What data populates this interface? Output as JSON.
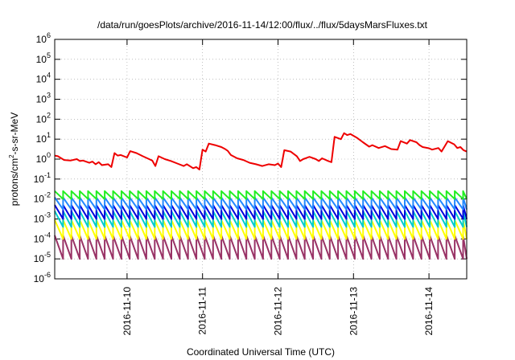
{
  "chart_data": {
    "type": "line",
    "title": "/data/run/goesPlots/archive/2016-11-14/12:00/flux/../flux/5daysMarsFluxes.txt",
    "xlabel": "Coordinated Universal Time (UTC)",
    "ylabel": {
      "before": "protons/cm",
      "sup": "2",
      "after": "-s-sr-MeV"
    },
    "yscale": "log",
    "ylim": [
      1e-06,
      1000000.0
    ],
    "xlim": [
      "2016-11-09T01:00",
      "2016-11-14T12:00"
    ],
    "grid": true,
    "legend": "none",
    "y_ticks": [
      {
        "base": "10",
        "exp": "-6",
        "value": 1e-06
      },
      {
        "base": "10",
        "exp": "-5",
        "value": 1e-05
      },
      {
        "base": "10",
        "exp": "-4",
        "value": 0.0001
      },
      {
        "base": "10",
        "exp": "-3",
        "value": 0.001
      },
      {
        "base": "10",
        "exp": "-2",
        "value": 0.01
      },
      {
        "base": "10",
        "exp": "-1",
        "value": 0.1
      },
      {
        "base": "10",
        "exp": "0",
        "value": 1
      },
      {
        "base": "10",
        "exp": "1",
        "value": 10
      },
      {
        "base": "10",
        "exp": "2",
        "value": 100
      },
      {
        "base": "10",
        "exp": "3",
        "value": 1000
      },
      {
        "base": "10",
        "exp": "4",
        "value": 10000
      },
      {
        "base": "10",
        "exp": "5",
        "value": 100000
      },
      {
        "base": "10",
        "exp": "6",
        "value": 1000000
      }
    ],
    "x_ticks": [
      {
        "label": "2016-11-10",
        "value": "2016-11-10T00:00"
      },
      {
        "label": "2016-11-11",
        "value": "2016-11-11T00:00"
      },
      {
        "label": "2016-11-12",
        "value": "2016-11-12T00:00"
      },
      {
        "label": "2016-11-13",
        "value": "2016-11-13T00:00"
      },
      {
        "label": "2016-11-14",
        "value": "2016-11-14T00:00"
      }
    ],
    "series": [
      {
        "color": "#ee0000",
        "points": [
          [
            "2016-11-09T01:00",
            1.5
          ],
          [
            "2016-11-09T02:00",
            1.4
          ],
          [
            "2016-11-09T04:00",
            0.9
          ],
          [
            "2016-11-09T06:00",
            0.85
          ],
          [
            "2016-11-09T08:00",
            1.0
          ],
          [
            "2016-11-09T09:00",
            0.8
          ],
          [
            "2016-11-09T10:00",
            0.85
          ],
          [
            "2016-11-09T12:00",
            0.65
          ],
          [
            "2016-11-09T13:00",
            0.75
          ],
          [
            "2016-11-09T14:00",
            0.55
          ],
          [
            "2016-11-09T15:00",
            0.7
          ],
          [
            "2016-11-09T16:00",
            0.5
          ],
          [
            "2016-11-09T18:00",
            0.55
          ],
          [
            "2016-11-09T19:00",
            0.4
          ],
          [
            "2016-11-09T20:00",
            2.0
          ],
          [
            "2016-11-09T21:00",
            1.5
          ],
          [
            "2016-11-09T22:00",
            1.6
          ],
          [
            "2016-11-10T00:00",
            1.2
          ],
          [
            "2016-11-10T01:00",
            2.5
          ],
          [
            "2016-11-10T03:00",
            2.0
          ],
          [
            "2016-11-10T05:00",
            1.4
          ],
          [
            "2016-11-10T07:00",
            1.0
          ],
          [
            "2016-11-10T08:00",
            0.85
          ],
          [
            "2016-11-10T09:00",
            0.45
          ],
          [
            "2016-11-10T10:00",
            1.4
          ],
          [
            "2016-11-10T12:00",
            1.0
          ],
          [
            "2016-11-10T14:00",
            0.8
          ],
          [
            "2016-11-10T16:00",
            0.6
          ],
          [
            "2016-11-10T18:00",
            0.45
          ],
          [
            "2016-11-10T19:00",
            0.55
          ],
          [
            "2016-11-10T21:00",
            0.35
          ],
          [
            "2016-11-10T22:00",
            0.4
          ],
          [
            "2016-11-10T23:00",
            0.3
          ],
          [
            "2016-11-11T00:00",
            3.0
          ],
          [
            "2016-11-11T01:00",
            2.4
          ],
          [
            "2016-11-11T02:00",
            6.0
          ],
          [
            "2016-11-11T04:00",
            5.0
          ],
          [
            "2016-11-11T06:00",
            4.0
          ],
          [
            "2016-11-11T07:00",
            3.3
          ],
          [
            "2016-11-11T08:00",
            2.6
          ],
          [
            "2016-11-11T09:00",
            1.6
          ],
          [
            "2016-11-11T11:00",
            1.1
          ],
          [
            "2016-11-11T13:00",
            0.9
          ],
          [
            "2016-11-11T15:00",
            0.65
          ],
          [
            "2016-11-11T17:00",
            0.55
          ],
          [
            "2016-11-11T19:00",
            0.45
          ],
          [
            "2016-11-11T21:00",
            0.55
          ],
          [
            "2016-11-11T23:00",
            0.5
          ],
          [
            "2016-11-12T00:00",
            0.6
          ],
          [
            "2016-11-12T01:00",
            0.4
          ],
          [
            "2016-11-12T02:00",
            2.8
          ],
          [
            "2016-11-12T04:00",
            2.4
          ],
          [
            "2016-11-12T06:00",
            1.4
          ],
          [
            "2016-11-12T07:00",
            0.8
          ],
          [
            "2016-11-12T08:00",
            1.0
          ],
          [
            "2016-11-12T10:00",
            1.3
          ],
          [
            "2016-11-12T12:00",
            1.0
          ],
          [
            "2016-11-12T13:00",
            0.8
          ],
          [
            "2016-11-12T14:00",
            1.1
          ],
          [
            "2016-11-12T16:00",
            0.8
          ],
          [
            "2016-11-12T17:00",
            0.7
          ],
          [
            "2016-11-12T18:00",
            13.0
          ],
          [
            "2016-11-12T20:00",
            10.0
          ],
          [
            "2016-11-12T21:00",
            20.0
          ],
          [
            "2016-11-12T22:00",
            16.0
          ],
          [
            "2016-11-12T23:00",
            18.0
          ],
          [
            "2016-11-13T01:00",
            12.0
          ],
          [
            "2016-11-13T03:00",
            7.0
          ],
          [
            "2016-11-13T05:00",
            4.2
          ],
          [
            "2016-11-13T06:00",
            5.0
          ],
          [
            "2016-11-13T08:00",
            3.6
          ],
          [
            "2016-11-13T10:00",
            4.5
          ],
          [
            "2016-11-13T12:00",
            3.2
          ],
          [
            "2016-11-13T14:00",
            3.0
          ],
          [
            "2016-11-13T15:00",
            8.0
          ],
          [
            "2016-11-13T17:00",
            6.0
          ],
          [
            "2016-11-13T18:00",
            9.0
          ],
          [
            "2016-11-13T20:00",
            7.0
          ],
          [
            "2016-11-13T21:00",
            5.0
          ],
          [
            "2016-11-13T22:00",
            4.0
          ],
          [
            "2016-11-14T00:00",
            3.5
          ],
          [
            "2016-11-14T01:00",
            3.0
          ],
          [
            "2016-11-14T03:00",
            3.6
          ],
          [
            "2016-11-14T04:00",
            2.4
          ],
          [
            "2016-11-14T06:00",
            8.0
          ],
          [
            "2016-11-14T08:00",
            5.5
          ],
          [
            "2016-11-14T09:00",
            3.6
          ],
          [
            "2016-11-14T10:00",
            4.0
          ],
          [
            "2016-11-14T11:00",
            2.8
          ],
          [
            "2016-11-14T12:00",
            2.4
          ]
        ]
      },
      {
        "color": "#22ee22",
        "sawtooth": {
          "start": "2016-11-09T01:00",
          "end": "2016-11-14T12:00",
          "period_hours": 2.65,
          "peak": 0.025,
          "trough": 0.01
        }
      },
      {
        "color": "#2288ff",
        "sawtooth": {
          "start": "2016-11-09T01:00",
          "end": "2016-11-14T12:00",
          "period_hours": 2.65,
          "peak": 0.012,
          "trough": 0.003
        }
      },
      {
        "color": "#0000dd",
        "sawtooth": {
          "start": "2016-11-09T01:00",
          "end": "2016-11-14T12:00",
          "period_hours": 2.65,
          "peak": 0.005,
          "trough": 0.001
        }
      },
      {
        "color": "#00cccc",
        "sawtooth": {
          "start": "2016-11-09T01:00",
          "end": "2016-11-14T12:00",
          "period_hours": 2.65,
          "peak": 0.0025,
          "trough": 0.0004
        }
      },
      {
        "color": "#ffff00",
        "sawtooth": {
          "start": "2016-11-09T01:00",
          "end": "2016-11-14T12:00",
          "period_hours": 2.65,
          "peak": 0.0009,
          "trough": 0.0001
        }
      },
      {
        "color": "#993366",
        "sawtooth": {
          "start": "2016-11-09T01:00",
          "end": "2016-11-14T12:00",
          "period_hours": 2.65,
          "peak": 0.00015,
          "trough": 1e-05
        }
      }
    ]
  }
}
